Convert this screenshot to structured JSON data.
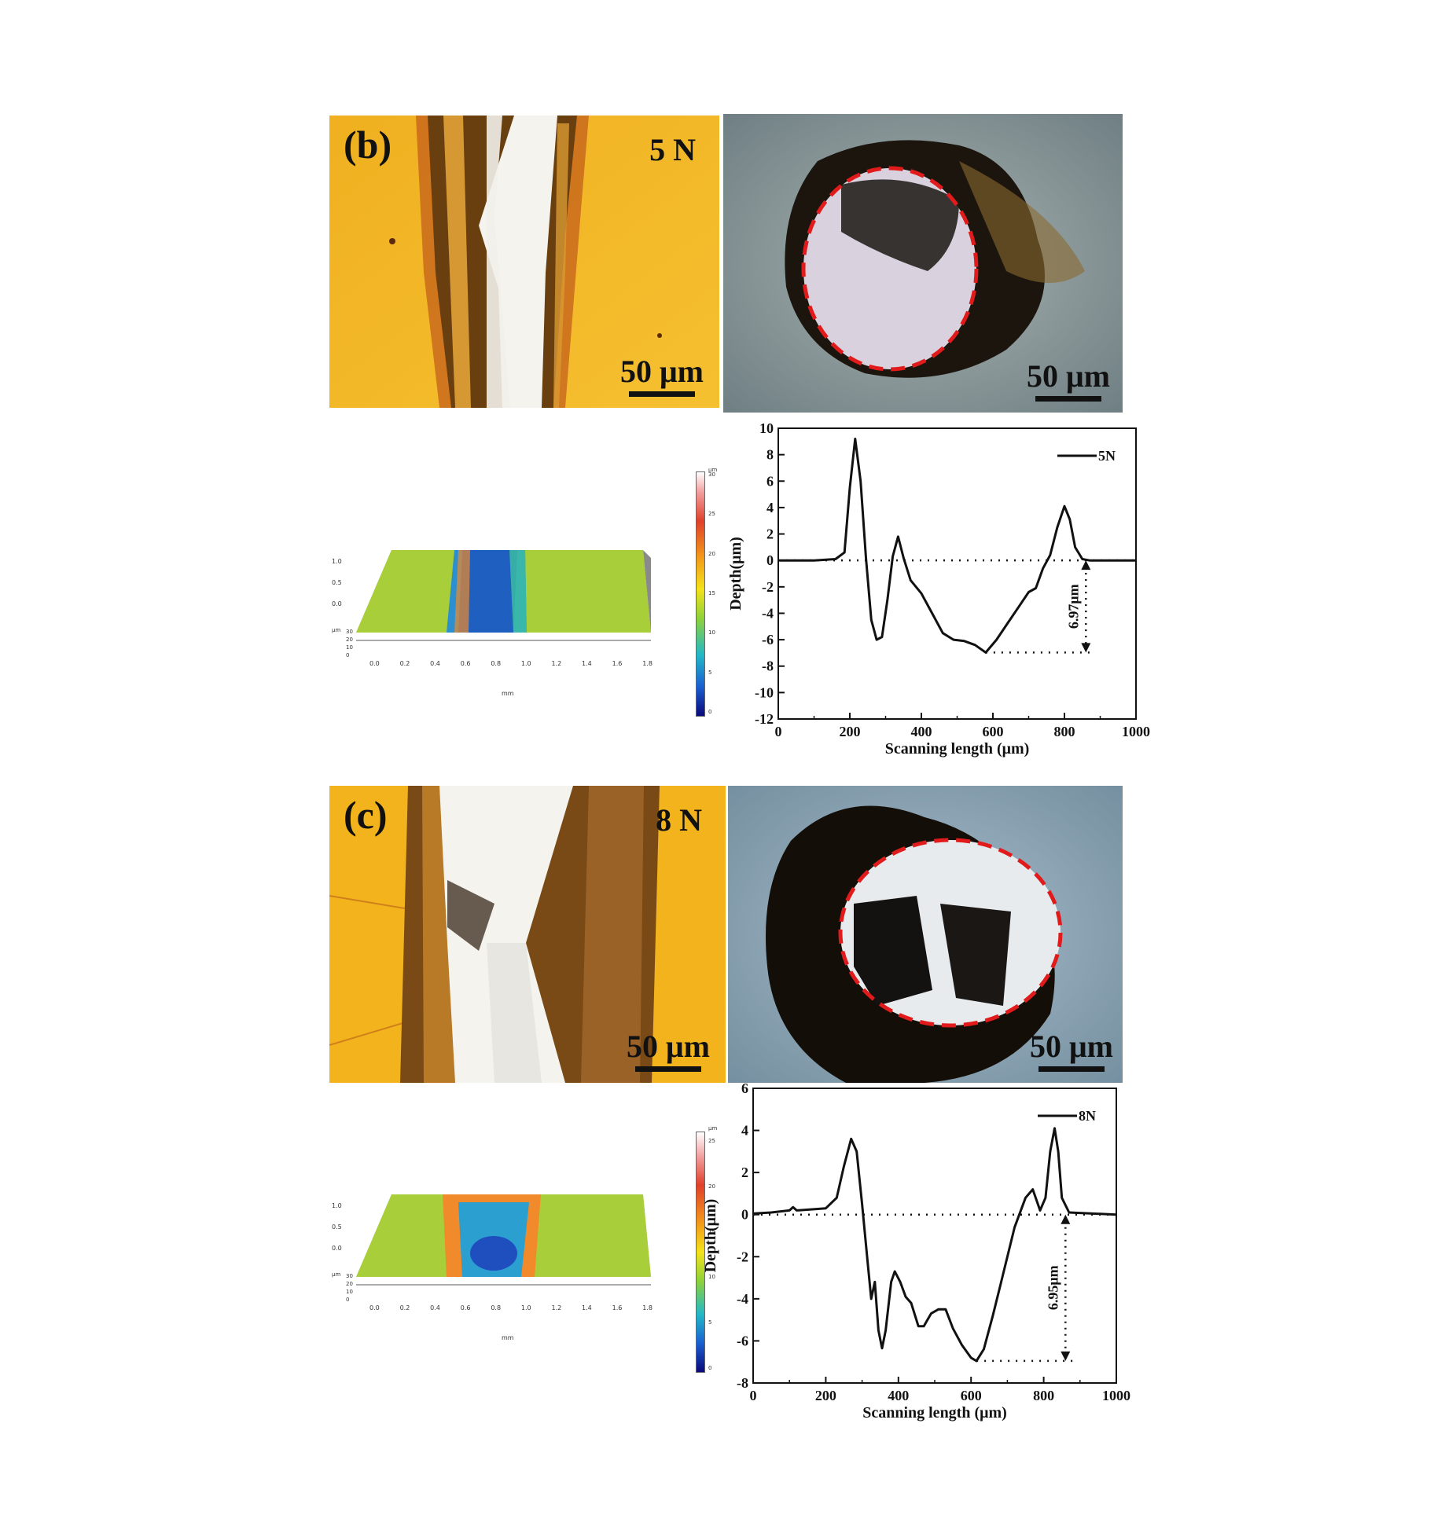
{
  "panels": [
    {
      "letter": "(b)",
      "load": "5 N",
      "scale_left": "50 μm",
      "scale_right": "50 μm",
      "topo_unit_top": "μm",
      "topo_x_unit": "mm",
      "topo_y_unit": "mm",
      "topo_z_unit": "μm",
      "colorbar_ticks": [
        "30",
        "25",
        "20",
        "15",
        "10",
        "5",
        "0"
      ],
      "topo_x_ticks": [
        "0.0",
        "0.2",
        "0.4",
        "0.6",
        "0.8",
        "1.0",
        "1.2",
        "1.4",
        "1.6",
        "1.8"
      ],
      "topo_y_ticks": [
        "1.0",
        "0.5",
        "0.0"
      ],
      "topo_z_ticks": [
        "30",
        "20",
        "10",
        "0"
      ],
      "depth_annotation": "6.97μm"
    },
    {
      "letter": "(c)",
      "load": "8 N",
      "scale_left": "50 μm",
      "scale_right": "50 μm",
      "topo_unit_top": "μm",
      "topo_x_unit": "mm",
      "topo_y_unit": "mm",
      "topo_z_unit": "μm",
      "colorbar_ticks": [
        "25",
        "20",
        "15",
        "10",
        "5",
        "0"
      ],
      "topo_x_ticks": [
        "0.0",
        "0.2",
        "0.4",
        "0.6",
        "0.8",
        "1.0",
        "1.2",
        "1.4",
        "1.6",
        "1.8"
      ],
      "topo_y_ticks": [
        "1.0",
        "0.5",
        "0.0"
      ],
      "topo_z_ticks": [
        "30",
        "20",
        "10",
        "0"
      ],
      "depth_annotation": "6.95μm"
    }
  ],
  "colors": {
    "yellow_surface": "#f2b31c",
    "wear_dark": "#6a3f10",
    "wear_white": "#f5f3ee",
    "ball_grey": "#8f9da0",
    "dashed_red": "#e11b1b",
    "topo_green": "#a8cf3a"
  },
  "chart_data": [
    {
      "type": "line",
      "xlabel": "Scanning length (μm)",
      "ylabel": "Depth(μm)",
      "xlim": [
        0,
        1000
      ],
      "ylim": [
        -12,
        10
      ],
      "x_ticks": [
        0,
        200,
        400,
        600,
        800,
        1000
      ],
      "y_ticks": [
        10,
        8,
        6,
        4,
        2,
        0,
        -2,
        -4,
        -6,
        -8,
        -10,
        -12
      ],
      "series": [
        {
          "name": "5N",
          "points": [
            [
              0,
              0
            ],
            [
              100,
              0
            ],
            [
              160,
              0.1
            ],
            [
              185,
              0.6
            ],
            [
              200,
              5.5
            ],
            [
              215,
              9.2
            ],
            [
              230,
              6
            ],
            [
              245,
              0.2
            ],
            [
              260,
              -4.5
            ],
            [
              275,
              -6
            ],
            [
              290,
              -5.8
            ],
            [
              305,
              -3
            ],
            [
              320,
              0.3
            ],
            [
              335,
              1.8
            ],
            [
              350,
              0.2
            ],
            [
              370,
              -1.5
            ],
            [
              400,
              -2.5
            ],
            [
              430,
              -4
            ],
            [
              460,
              -5.5
            ],
            [
              490,
              -6
            ],
            [
              520,
              -6.1
            ],
            [
              550,
              -6.4
            ],
            [
              580,
              -6.97
            ],
            [
              610,
              -6
            ],
            [
              640,
              -4.8
            ],
            [
              670,
              -3.6
            ],
            [
              700,
              -2.4
            ],
            [
              720,
              -2.1
            ],
            [
              740,
              -0.6
            ],
            [
              760,
              0.4
            ],
            [
              780,
              2.5
            ],
            [
              800,
              4.1
            ],
            [
              815,
              3.1
            ],
            [
              830,
              1
            ],
            [
              850,
              0.1
            ],
            [
              870,
              0
            ],
            [
              1000,
              0
            ]
          ]
        }
      ],
      "reference_zero": 0,
      "min_depth": -6.97
    },
    {
      "type": "line",
      "xlabel": "Scanning length (μm)",
      "ylabel": "Depth(μm)",
      "xlim": [
        0,
        1000
      ],
      "ylim": [
        -8,
        6
      ],
      "x_ticks": [
        0,
        200,
        400,
        600,
        800,
        1000
      ],
      "y_ticks": [
        6,
        4,
        2,
        0,
        -2,
        -4,
        -6,
        -8
      ],
      "series": [
        {
          "name": "8N",
          "points": [
            [
              0,
              0.05
            ],
            [
              50,
              0.1
            ],
            [
              100,
              0.2
            ],
            [
              110,
              0.35
            ],
            [
              120,
              0.2
            ],
            [
              200,
              0.3
            ],
            [
              230,
              0.8
            ],
            [
              250,
              2.3
            ],
            [
              270,
              3.6
            ],
            [
              285,
              3
            ],
            [
              300,
              0.5
            ],
            [
              315,
              -2.2
            ],
            [
              325,
              -4
            ],
            [
              335,
              -3.2
            ],
            [
              345,
              -5.5
            ],
            [
              355,
              -6.35
            ],
            [
              365,
              -5.5
            ],
            [
              380,
              -3.2
            ],
            [
              390,
              -2.7
            ],
            [
              405,
              -3.2
            ],
            [
              420,
              -3.9
            ],
            [
              435,
              -4.2
            ],
            [
              455,
              -5.3
            ],
            [
              470,
              -5.3
            ],
            [
              490,
              -4.7
            ],
            [
              510,
              -4.5
            ],
            [
              530,
              -4.5
            ],
            [
              550,
              -5.4
            ],
            [
              575,
              -6.2
            ],
            [
              600,
              -6.8
            ],
            [
              615,
              -6.95
            ],
            [
              635,
              -6.4
            ],
            [
              660,
              -4.8
            ],
            [
              680,
              -3.4
            ],
            [
              700,
              -2
            ],
            [
              720,
              -0.6
            ],
            [
              750,
              0.8
            ],
            [
              770,
              1.2
            ],
            [
              790,
              0.2
            ],
            [
              805,
              0.8
            ],
            [
              818,
              3
            ],
            [
              830,
              4.1
            ],
            [
              840,
              3
            ],
            [
              850,
              0.8
            ],
            [
              870,
              0.1
            ],
            [
              1000,
              0
            ]
          ]
        }
      ],
      "reference_zero": 0,
      "min_depth": -6.95
    }
  ]
}
